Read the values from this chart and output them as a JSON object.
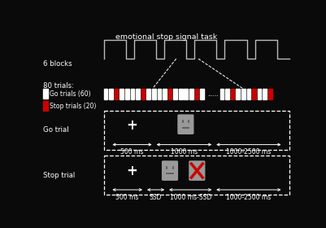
{
  "bg_color": "#0a0a0a",
  "text_color": "#ffffff",
  "gray_color": "#aaaaaa",
  "title": "emotional stop signal task",
  "title_fontsize": 6.8,
  "label_6blocks": "6 blocks",
  "label_80trials": "80 trials:",
  "label_go": "Go trials (60)",
  "label_stop": "Stop trials (20)",
  "label_gotrial": "Go trial",
  "label_stoptrial": "Stop trial",
  "go_color": "#ffffff",
  "stop_color": "#cc0000",
  "wave_color": "#bbbbbb",
  "face_color": "#999999",
  "timing_fontsize": 5.5,
  "label_fontsize": 6.2,
  "small_fontsize": 5.5
}
